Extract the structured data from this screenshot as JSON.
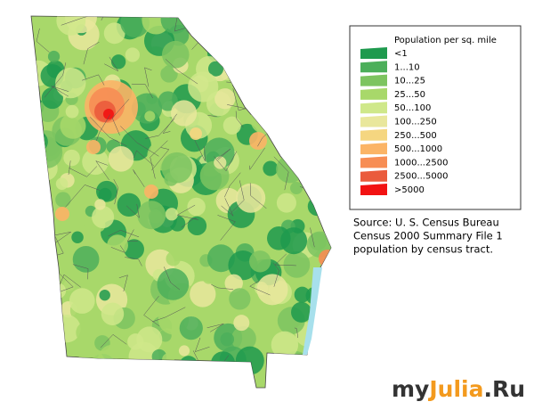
{
  "legend": {
    "title": "Population per sq. mile",
    "items": [
      {
        "label": "<1",
        "color": "#1e9a4e"
      },
      {
        "label": "1...10",
        "color": "#4caf5a"
      },
      {
        "label": "10...25",
        "color": "#7dc460"
      },
      {
        "label": "25...50",
        "color": "#a8d86a"
      },
      {
        "label": "50...100",
        "color": "#cfe88a"
      },
      {
        "label": "100...250",
        "color": "#e9e79c"
      },
      {
        "label": "250...500",
        "color": "#f5d680"
      },
      {
        "label": "500...1000",
        "color": "#fbb466"
      },
      {
        "label": "1000...2500",
        "color": "#f78d54"
      },
      {
        "label": "2500...5000",
        "color": "#ea5b3c"
      },
      {
        "label": ">5000",
        "color": "#f21212"
      }
    ]
  },
  "source": [
    "Source: U. S. Census Bureau",
    "Census 2000 Summary File 1",
    "population by census tract."
  ],
  "watermark": [
    {
      "text": "my",
      "color": "#333333"
    },
    {
      "text": "Julia",
      "color": "#f39a1e"
    },
    {
      "text": ".Ru",
      "color": "#333333"
    }
  ]
}
